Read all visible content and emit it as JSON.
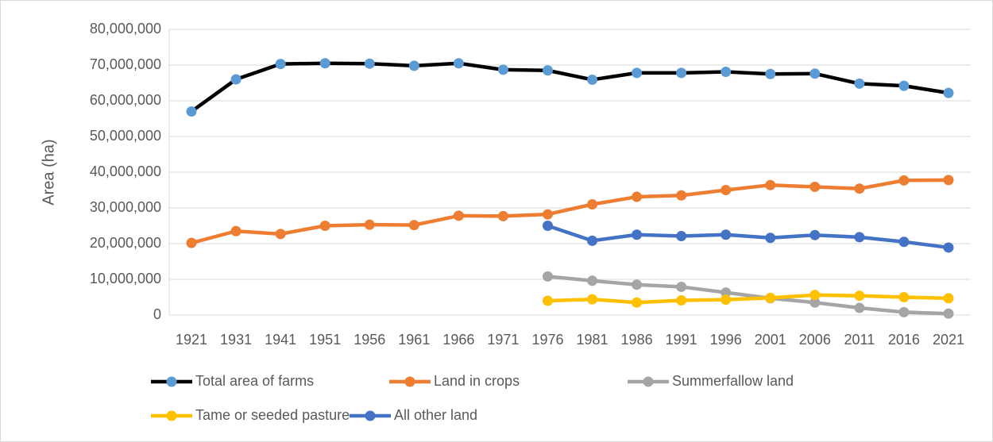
{
  "chart_data": {
    "type": "line",
    "ylabel": "Area (ha)",
    "categories": [
      "1921",
      "1931",
      "1941",
      "1951",
      "1956",
      "1961",
      "1966",
      "1971",
      "1976",
      "1981",
      "1986",
      "1991",
      "1996",
      "2001",
      "2006",
      "2011",
      "2016",
      "2021"
    ],
    "series": [
      {
        "name": "Total area of farms",
        "color": "#000000",
        "marker_color": "#5b9bd5",
        "values": [
          57000000,
          66000000,
          70300000,
          70500000,
          70400000,
          69800000,
          70500000,
          68700000,
          68500000,
          65900000,
          67800000,
          67800000,
          68100000,
          67500000,
          67600000,
          64800000,
          64200000,
          62200000
        ]
      },
      {
        "name": "Land in crops",
        "color": "#ed7d31",
        "marker_color": "#ed7d31",
        "values": [
          20200000,
          23500000,
          22700000,
          25000000,
          25300000,
          25200000,
          27800000,
          27700000,
          28200000,
          31000000,
          33100000,
          33500000,
          35000000,
          36400000,
          35900000,
          35400000,
          37700000,
          37800000
        ]
      },
      {
        "name": "Summerfallow land",
        "color": "#a5a5a5",
        "marker_color": "#a5a5a5",
        "values": [
          null,
          null,
          null,
          null,
          null,
          null,
          null,
          null,
          10800000,
          9600000,
          8500000,
          7900000,
          6300000,
          4700000,
          3500000,
          2000000,
          800000,
          400000
        ]
      },
      {
        "name": "Tame or seeded pasture",
        "color": "#ffc000",
        "marker_color": "#ffc000",
        "values": [
          null,
          null,
          null,
          null,
          null,
          null,
          null,
          null,
          4000000,
          4400000,
          3500000,
          4100000,
          4300000,
          4800000,
          5600000,
          5400000,
          5000000,
          4700000
        ]
      },
      {
        "name": "All other land",
        "color": "#4472c4",
        "marker_color": "#4472c4",
        "values": [
          null,
          null,
          null,
          null,
          null,
          null,
          null,
          null,
          25000000,
          20800000,
          22500000,
          22100000,
          22500000,
          21600000,
          22400000,
          21800000,
          20500000,
          18900000
        ]
      }
    ],
    "ylim": [
      0,
      80000000
    ],
    "yticks": [
      0,
      {
        "value": 10000000,
        "label": "10,000,000"
      },
      {
        "value": 20000000,
        "label": "20,000,000"
      },
      {
        "value": 30000000,
        "label": "30,000,000"
      },
      {
        "value": 40000000,
        "label": "40,000,000"
      },
      {
        "value": 50000000,
        "label": "50,000,000"
      },
      {
        "value": 60000000,
        "label": "60,000,000"
      },
      {
        "value": 70000000,
        "label": "70,000,000"
      },
      {
        "value": 80000000,
        "label": "80,000,000"
      }
    ],
    "grid": true,
    "legend": "bottom"
  }
}
